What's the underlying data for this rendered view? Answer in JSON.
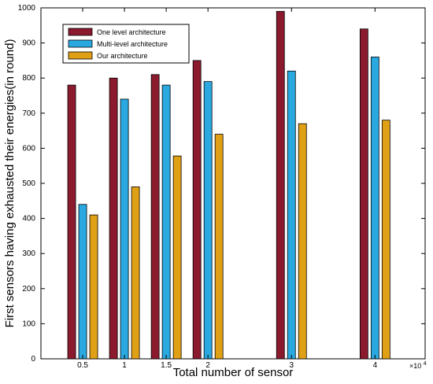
{
  "chart_data": {
    "type": "bar",
    "title": "",
    "xlabel": "Total number of sensor",
    "ylabel": "First sensors having exhausted their energies(in round)",
    "x_multiplier_label": "×10",
    "x_multiplier_exponent": "4",
    "x": [
      0.5,
      1,
      1.5,
      2,
      3,
      4
    ],
    "x_tick_labels": [
      "0.5",
      "1",
      "1.5",
      "2",
      "3",
      "4"
    ],
    "xlim": [
      0,
      4.6
    ],
    "ylim": [
      0,
      1000
    ],
    "y_ticks": [
      0,
      100,
      200,
      300,
      400,
      500,
      600,
      700,
      800,
      900,
      1000
    ],
    "grid": false,
    "legend_position": "top-left",
    "series": [
      {
        "name": "One level architecture",
        "color": "#8b1a2e",
        "values": [
          780,
          800,
          810,
          850,
          990,
          940
        ]
      },
      {
        "name": "Multi-level architecture",
        "color": "#2aa8e0",
        "values": [
          440,
          740,
          780,
          790,
          820,
          860
        ]
      },
      {
        "name": "Our architecture",
        "color": "#e0a015",
        "values": [
          410,
          490,
          578,
          640,
          670,
          680
        ]
      }
    ]
  }
}
